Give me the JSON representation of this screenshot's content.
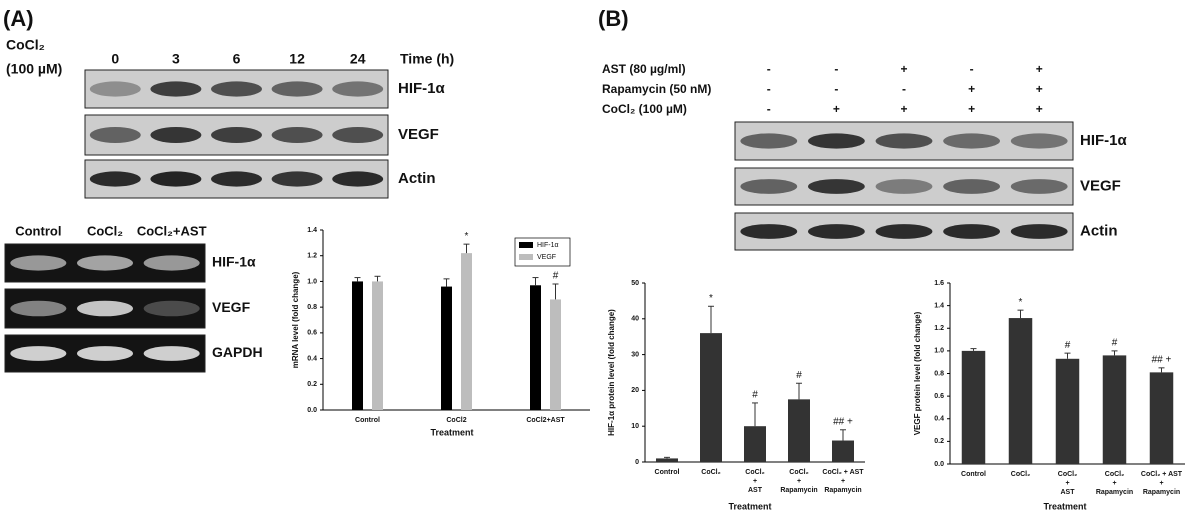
{
  "panel_a": {
    "label": "(A)",
    "treatment": [
      "CoCl₂",
      "(100 µM)"
    ],
    "times": [
      "0",
      "3",
      "6",
      "12",
      "24"
    ],
    "time_label": "Time (h)",
    "blot_labels": [
      "HIF-1α",
      "VEGF",
      "Actin"
    ],
    "rtpcr": {
      "lanes": [
        "Control",
        "CoCl₂",
        "CoCl₂+AST"
      ],
      "genes": [
        "HIF-1α",
        "VEGF",
        "GAPDH"
      ]
    }
  },
  "panel_b": {
    "label": "(B)",
    "conditions": [
      {
        "name": "AST (80 µg/ml)",
        "signs": [
          "-",
          "-",
          "+",
          "-",
          "+"
        ]
      },
      {
        "name": "Rapamycin (50 nM)",
        "signs": [
          "-",
          "-",
          "-",
          "+",
          "+"
        ]
      },
      {
        "name": "CoCl₂ (100 µM)",
        "signs": [
          "-",
          "+",
          "+",
          "+",
          "+"
        ]
      }
    ],
    "blot_labels": [
      "HIF-1α",
      "VEGF",
      "Actin"
    ]
  },
  "chart_data": [
    {
      "type": "bar",
      "ylabel": "mRNA level (fold change)",
      "xlabel": "Treatment",
      "categories": [
        [
          "Control"
        ],
        [
          "CoCl2"
        ],
        [
          "CoCl2+AST"
        ]
      ],
      "series": [
        {
          "name": "HIF-1α",
          "color": "#000000",
          "values": [
            1.0,
            0.96,
            0.97
          ],
          "errors": [
            0.03,
            0.06,
            0.06
          ],
          "annotations": [
            null,
            null,
            null
          ]
        },
        {
          "name": "VEGF",
          "color": "#bdbdbd",
          "values": [
            1.0,
            1.22,
            0.86
          ],
          "errors": [
            0.04,
            0.07,
            0.12
          ],
          "annotations": [
            null,
            "*",
            "#"
          ]
        }
      ],
      "ylim": [
        0,
        1.4
      ],
      "yticks": [
        {
          "value": 0,
          "label": "0.0"
        },
        {
          "value": 0.2,
          "label": "0.2"
        },
        {
          "value": 0.4,
          "label": "0.4"
        },
        {
          "value": 0.6,
          "label": "0.6"
        },
        {
          "value": 0.8,
          "label": "0.8"
        },
        {
          "value": 1.0,
          "label": "1.0"
        },
        {
          "value": 1.2,
          "label": "1.2"
        },
        {
          "value": 1.4,
          "label": "1.4"
        }
      ],
      "legend": "upper right"
    },
    {
      "type": "bar",
      "ylabel": "HIF-1α protein level (fold change)",
      "xlabel": "Treatment",
      "categories": [
        [
          "Control"
        ],
        [
          "CoCl₂"
        ],
        [
          "CoCl₂",
          "+",
          "AST"
        ],
        [
          "CoCl₂",
          "+",
          "Rapamycin"
        ],
        [
          "CoCl₂ + AST",
          "+",
          "Rapamycin"
        ]
      ],
      "values": [
        1,
        36,
        10,
        17.5,
        6
      ],
      "errors": [
        0.3,
        7.5,
        6.5,
        4.5,
        3
      ],
      "annotations": [
        null,
        "*",
        "#",
        "#",
        "## +"
      ],
      "color": "#333333",
      "ylim": [
        0,
        50
      ],
      "yticks": [
        0,
        10,
        20,
        30,
        40,
        50
      ]
    },
    {
      "type": "bar",
      "ylabel": "VEGF protein level (fold change)",
      "xlabel": "Treatment",
      "categories": [
        [
          "Control"
        ],
        [
          "CoCl₂"
        ],
        [
          "CoCl₂",
          "+",
          "AST"
        ],
        [
          "CoCl₂",
          "+",
          "Rapamycin"
        ],
        [
          "CoCl₂ + AST",
          "+",
          "Rapamycin"
        ]
      ],
      "values": [
        1.0,
        1.29,
        0.93,
        0.96,
        0.81
      ],
      "errors": [
        0.02,
        0.07,
        0.05,
        0.04,
        0.04
      ],
      "annotations": [
        null,
        "*",
        "#",
        "#",
        "## +"
      ],
      "color": "#333333",
      "ylim": [
        0,
        1.6
      ],
      "yticks": [
        {
          "value": 0,
          "label": "0.0"
        },
        {
          "value": 0.2,
          "label": "0.2"
        },
        {
          "value": 0.4,
          "label": "0.4"
        },
        {
          "value": 0.6,
          "label": "0.6"
        },
        {
          "value": 0.8,
          "label": "0.8"
        },
        {
          "value": 1.0,
          "label": "1.0"
        },
        {
          "value": 1.2,
          "label": "1.2"
        },
        {
          "value": 1.4,
          "label": "1.4"
        },
        {
          "value": 1.6,
          "label": "1.6"
        }
      ]
    }
  ]
}
